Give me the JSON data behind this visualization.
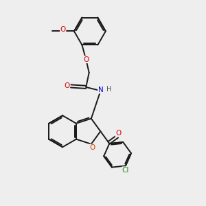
{
  "bg_color": "#eeeeee",
  "bond_color": "#1a1a1a",
  "bond_width": 1.4,
  "figsize": [
    3.0,
    3.0
  ],
  "dpi": 100,
  "xlim": [
    0,
    10
  ],
  "ylim": [
    0,
    10
  ]
}
